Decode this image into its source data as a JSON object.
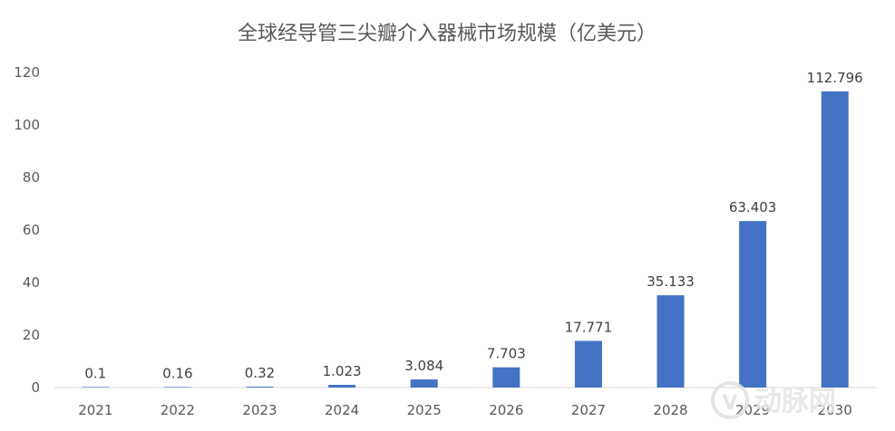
{
  "chart_data": {
    "type": "bar",
    "title": "全球经导管三尖瓣介入器械市场规模（亿美元）",
    "xlabel": "",
    "ylabel": "",
    "categories": [
      "2021",
      "2022",
      "2023",
      "2024",
      "2025",
      "2026",
      "2027",
      "2028",
      "2029",
      "2030"
    ],
    "values": [
      0.1,
      0.16,
      0.32,
      1.023,
      3.084,
      7.703,
      17.771,
      35.133,
      63.403,
      112.796
    ],
    "data_labels": [
      "0.1",
      "0.16",
      "0.32",
      "1.023",
      "3.084",
      "7.703",
      "17.771",
      "35.133",
      "63.403",
      "112.796"
    ],
    "ylim": [
      0,
      120
    ],
    "yticks": [
      0,
      20,
      40,
      60,
      80,
      100,
      120
    ],
    "grid": false,
    "legend": "none",
    "bar_color": "#4472C4"
  },
  "watermark": {
    "text": "动脉网",
    "icon": "vb-logo-icon"
  }
}
